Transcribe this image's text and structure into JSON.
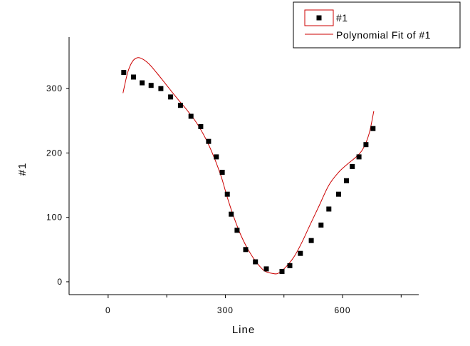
{
  "chart_data": {
    "type": "scatter",
    "xlabel": "Line",
    "ylabel": "#1",
    "xlim": [
      -100,
      795
    ],
    "ylim": [
      -20,
      380
    ],
    "xticks": [
      0,
      300,
      600
    ],
    "xticks_minor": [
      150,
      450,
      750
    ],
    "yticks": [
      0,
      100,
      200,
      300
    ],
    "grid": false,
    "legend_position": "top-right",
    "colors": {
      "points": "#000000",
      "fit": "#cc0000",
      "legend_marker_box": "#cc0000"
    },
    "series": [
      {
        "name": "#1",
        "kind": "scatter",
        "x": [
          40,
          65,
          87,
          110,
          135,
          160,
          185,
          212,
          237,
          257,
          277,
          292,
          305,
          315,
          330,
          352,
          377,
          405,
          445,
          465,
          492,
          520,
          545,
          565,
          590,
          610,
          625,
          642,
          660,
          678
        ],
        "y": [
          325,
          318,
          309,
          305,
          300,
          287,
          274,
          257,
          241,
          218,
          194,
          170,
          136,
          105,
          80,
          50,
          31,
          20,
          16,
          25,
          44,
          64,
          88,
          113,
          136,
          157,
          179,
          194,
          213,
          238
        ]
      },
      {
        "name": "Polynomial Fit of #1",
        "kind": "line",
        "x": [
          38,
          50,
          62,
          75,
          88,
          105,
          125,
          150,
          175,
          200,
          225,
          250,
          272,
          290,
          305,
          322,
          340,
          360,
          380,
          400,
          420,
          435,
          455,
          475,
          495,
          515,
          540,
          565,
          590,
          615,
          635,
          652,
          668,
          680
        ],
        "y": [
          293,
          325,
          342,
          348,
          346,
          338,
          324,
          305,
          286,
          268,
          248,
          222,
          192,
          162,
          131,
          100,
          72,
          48,
          30,
          17,
          13,
          13,
          23,
          38,
          60,
          86,
          118,
          150,
          170,
          184,
          194,
          206,
          230,
          265
        ]
      }
    ]
  }
}
